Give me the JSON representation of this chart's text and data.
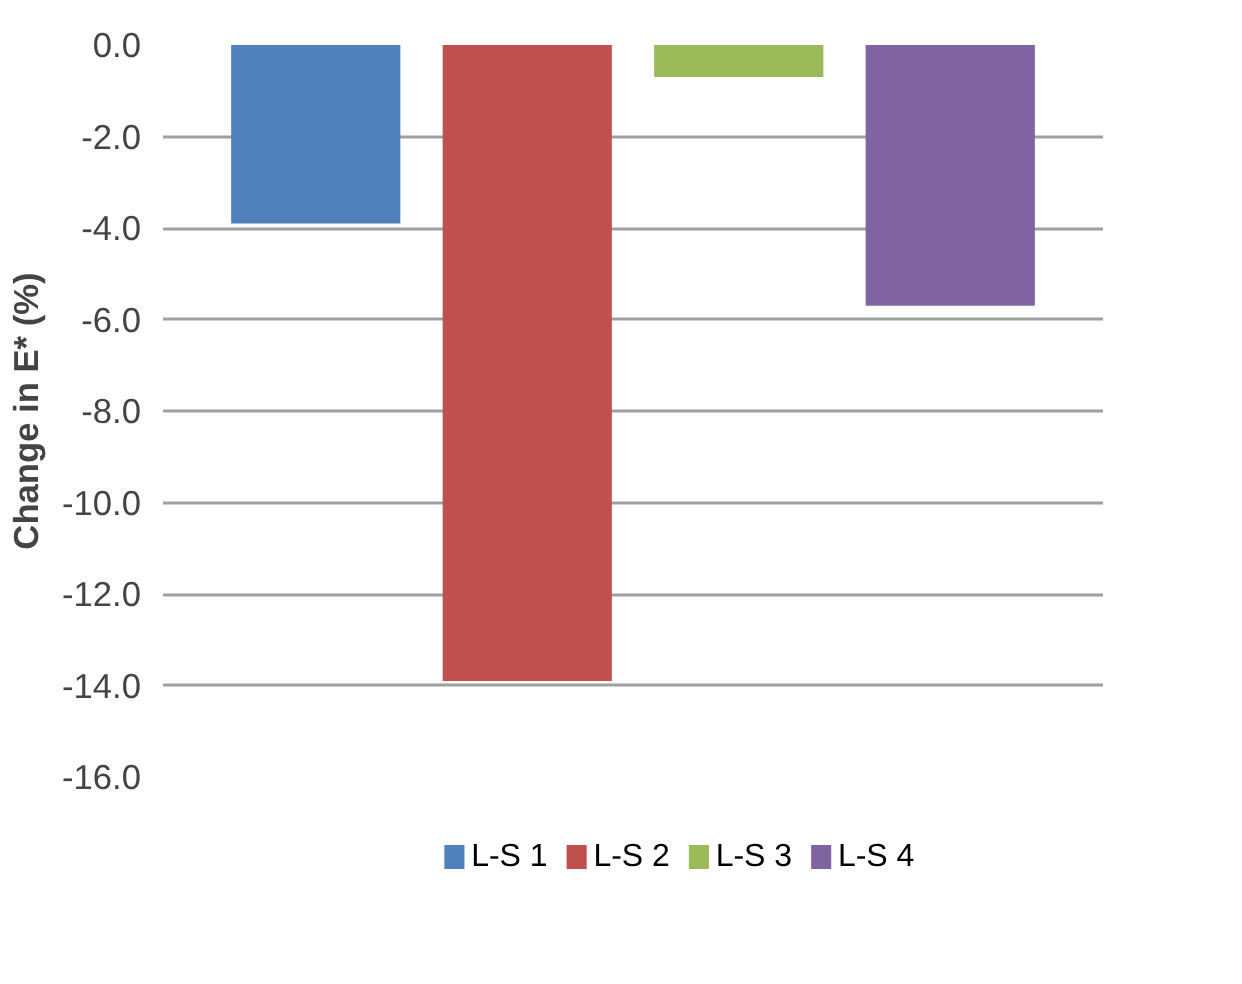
{
  "chart_data": {
    "type": "bar",
    "ylabel": "Change in E* (%)",
    "categories": [
      null
    ],
    "series": [
      {
        "name": "L-S 1",
        "color": "#4f81bd",
        "values": [
          -3.9
        ]
      },
      {
        "name": "L-S 2",
        "color": "#c0504d",
        "values": [
          -13.9
        ]
      },
      {
        "name": "L-S 3",
        "color": "#9bbb59",
        "values": [
          -0.7
        ]
      },
      {
        "name": "L-S 4",
        "color": "#8064a2",
        "values": [
          -5.7
        ]
      }
    ],
    "ylim": [
      -16,
      0
    ],
    "yticks": [
      {
        "value": 0,
        "label": "0.0"
      },
      {
        "value": -2,
        "label": "-2.0"
      },
      {
        "value": -4,
        "label": "-4.0"
      },
      {
        "value": -6,
        "label": "-6.0"
      },
      {
        "value": -8,
        "label": "-8.0"
      },
      {
        "value": -10,
        "label": "-10.0"
      },
      {
        "value": -12,
        "label": "-12.0"
      },
      {
        "value": -14,
        "label": "-14.0"
      },
      {
        "value": -16,
        "label": "-16.0"
      }
    ],
    "grid": "y",
    "legend": "bottom"
  }
}
